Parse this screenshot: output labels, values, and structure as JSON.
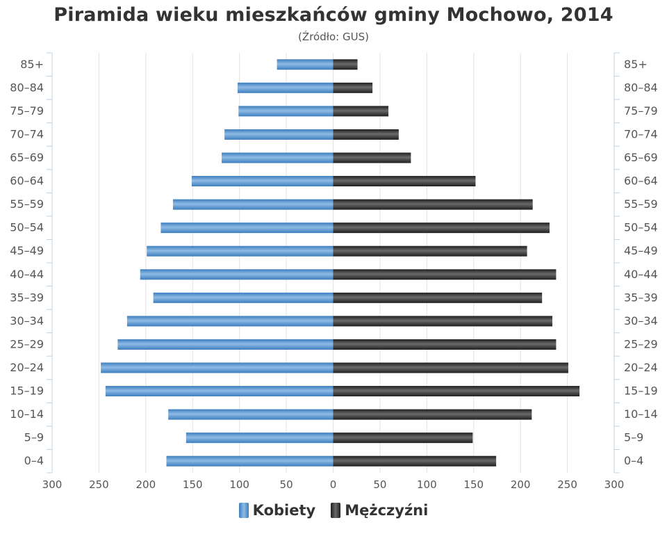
{
  "chart_data": {
    "type": "bar",
    "orientation": "horizontal-population-pyramid",
    "title": "Piramida wieku mieszkańców gminy Mochowo, 2014",
    "subtitle": "(Źródło: GUS)",
    "categories": [
      "0–4",
      "5–9",
      "10–14",
      "15–19",
      "20–24",
      "25–29",
      "30–34",
      "35–39",
      "40–44",
      "45–49",
      "50–54",
      "55–59",
      "60–64",
      "65–69",
      "70–74",
      "75–79",
      "80–84",
      "85+"
    ],
    "series": [
      {
        "name": "Kobiety",
        "color": "#3d7ebe",
        "side": "left",
        "values": [
          178,
          157,
          176,
          243,
          248,
          230,
          220,
          192,
          206,
          199,
          184,
          171,
          151,
          119,
          116,
          101,
          102,
          60
        ]
      },
      {
        "name": "Mężczyźni",
        "color": "#1f1f1f",
        "side": "right",
        "values": [
          174,
          149,
          212,
          263,
          251,
          238,
          234,
          223,
          238,
          207,
          231,
          213,
          152,
          83,
          70,
          59,
          42,
          26
        ]
      }
    ],
    "xlim": [
      -300,
      300
    ],
    "x_ticks": [
      "300",
      "250",
      "200",
      "150",
      "100",
      "50",
      "0",
      "50",
      "100",
      "150",
      "200",
      "250",
      "300"
    ],
    "grid": true,
    "legend_position": "bottom-center"
  }
}
